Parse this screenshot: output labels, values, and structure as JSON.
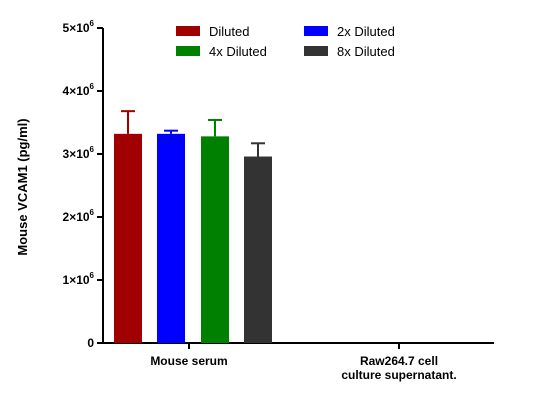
{
  "chart_data": {
    "type": "bar",
    "title": "",
    "xlabel": "",
    "ylabel": "Mouse VCAM1 (pg/ml)",
    "ylim": [
      0,
      5000000
    ],
    "yticks": [
      {
        "value": 0,
        "mantissa": "0",
        "exponent": ""
      },
      {
        "value": 1000000,
        "mantissa": "1×10",
        "exponent": "6"
      },
      {
        "value": 2000000,
        "mantissa": "2×10",
        "exponent": "6"
      },
      {
        "value": 3000000,
        "mantissa": "3×10",
        "exponent": "6"
      },
      {
        "value": 4000000,
        "mantissa": "4×10",
        "exponent": "6"
      },
      {
        "value": 5000000,
        "mantissa": "5×10",
        "exponent": "6"
      }
    ],
    "categories": [
      [
        "Mouse serum"
      ],
      [
        "Raw264.7 cell",
        "culture supernatant."
      ]
    ],
    "series": [
      {
        "name": "Diluted",
        "color": "#a00000",
        "values": [
          3320000,
          null
        ],
        "errors": [
          360000,
          null
        ]
      },
      {
        "name": "2x Diluted",
        "color": "#0000ff",
        "values": [
          3320000,
          null
        ],
        "errors": [
          50000,
          null
        ]
      },
      {
        "name": "4x Diluted",
        "color": "#008000",
        "values": [
          3280000,
          null
        ],
        "errors": [
          260000,
          null
        ]
      },
      {
        "name": "8x Diluted",
        "color": "#333333",
        "values": [
          2960000,
          null
        ],
        "errors": [
          210000,
          null
        ]
      }
    ],
    "legend": {
      "position": "top-center",
      "columns": 2,
      "order": [
        "Diluted",
        "2x Diluted",
        "4x Diluted",
        "8x Diluted"
      ]
    },
    "grid": false
  }
}
